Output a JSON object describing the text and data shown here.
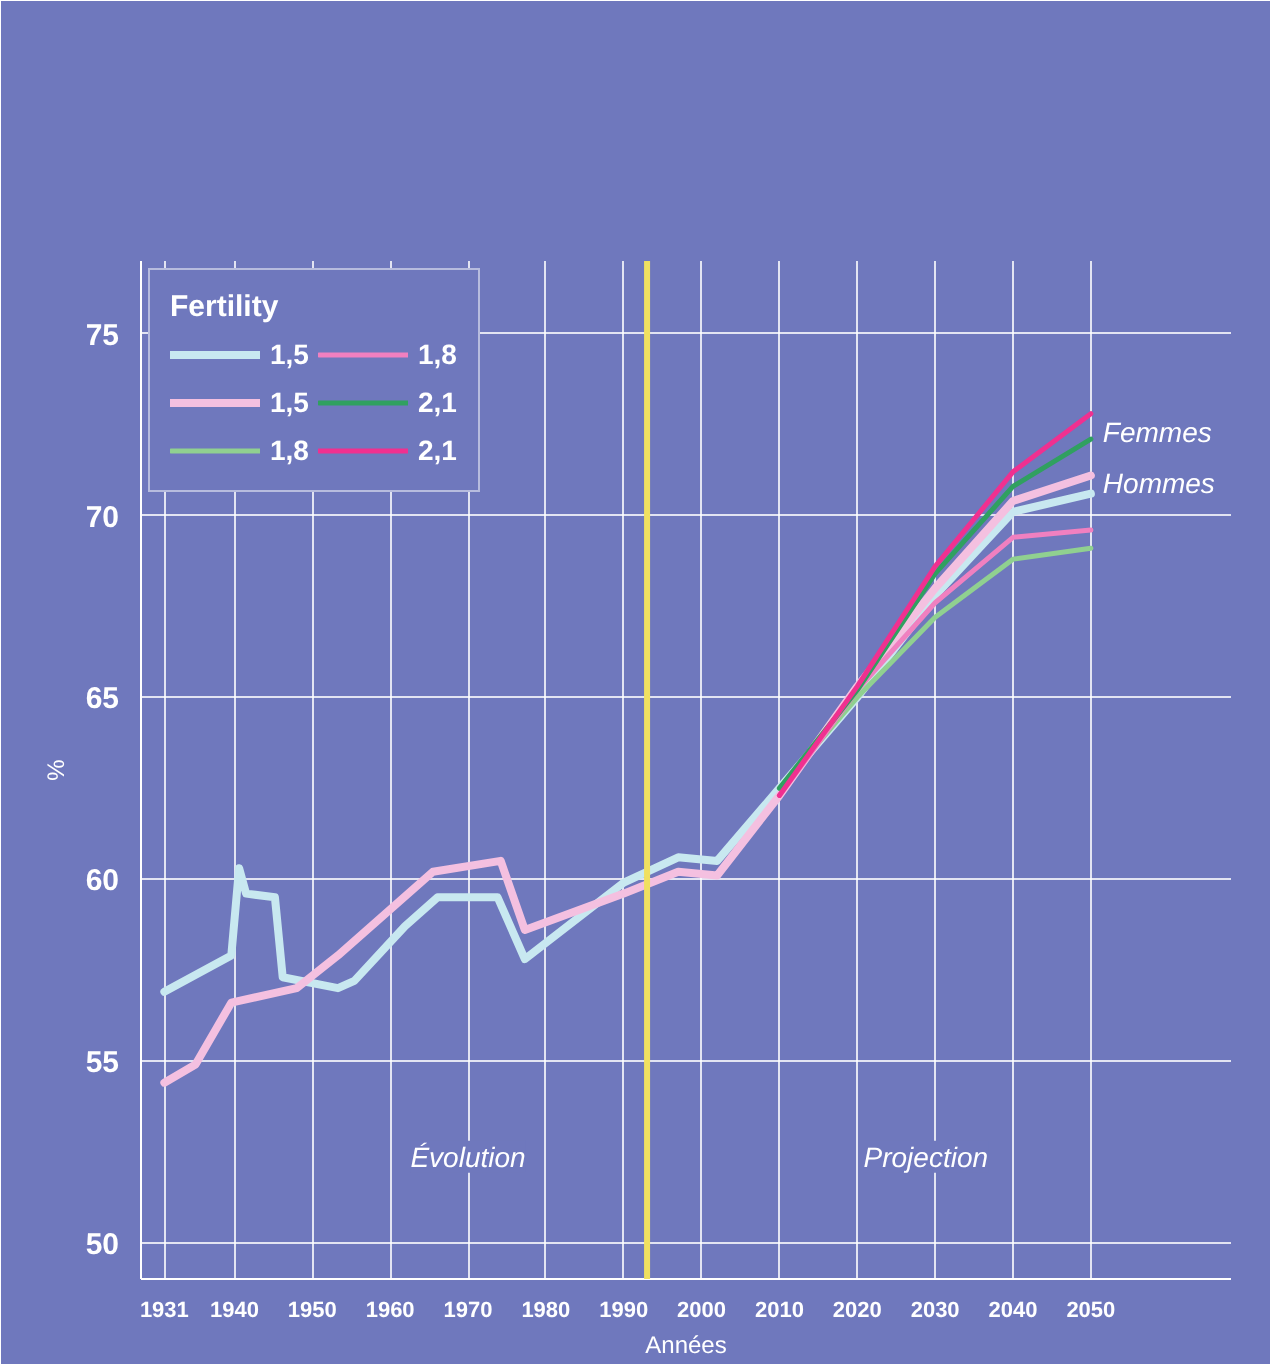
{
  "chart_data": {
    "type": "line",
    "ylabel": "%",
    "xlabel": "Années",
    "legend_title": "Fertility",
    "legend": "top left",
    "grid": true,
    "xlim": [
      1928,
      2068
    ],
    "ylim": [
      49,
      77
    ],
    "xticks": [
      1931,
      1940,
      1950,
      1960,
      1970,
      1980,
      1990,
      2000,
      2010,
      2020,
      2030,
      2040,
      2050
    ],
    "yticks": [
      50,
      55,
      60,
      65,
      70,
      75
    ],
    "series": [
      {
        "name": "1,5",
        "color": "#c8e8f0",
        "x": [
          1931,
          1939.6,
          1940.6,
          1941.5,
          1945.2,
          1946.2,
          1953.3,
          1955.4,
          1961.9,
          1966.1,
          1973.8,
          1977.3,
          1990,
          1997,
          2002,
          2010,
          2020,
          2030,
          2040,
          2050
        ],
        "values": [
          56.9,
          57.9,
          60.3,
          59.6,
          59.5,
          57.3,
          57.0,
          57.2,
          58.7,
          59.5,
          59.5,
          57.8,
          59.9,
          60.6,
          60.5,
          62.5,
          65.0,
          67.8,
          70.1,
          70.6
        ]
      },
      {
        "name": "1,5",
        "color": "#f4c0e0",
        "x": [
          1931,
          1935,
          1939.6,
          1948,
          1953.3,
          1965.5,
          1974.2,
          1977.3,
          1990,
          1997,
          2002,
          2010,
          2020,
          2030,
          2040,
          2050
        ],
        "values": [
          54.4,
          54.9,
          56.6,
          57.0,
          57.9,
          60.2,
          60.5,
          58.6,
          59.6,
          60.2,
          60.1,
          62.3,
          65.3,
          68.0,
          70.4,
          71.1
        ]
      },
      {
        "name": "1,8",
        "color": "#90d090",
        "x": [
          2010,
          2020,
          2030,
          2040,
          2050
        ],
        "values": [
          62.5,
          65.0,
          67.2,
          68.8,
          69.1
        ]
      },
      {
        "name": "1,8",
        "color": "#f080c0",
        "x": [
          2010,
          2020,
          2030,
          2040,
          2050
        ],
        "values": [
          62.3,
          65.2,
          67.6,
          69.4,
          69.6
        ]
      },
      {
        "name": "2,1",
        "color": "#30a060",
        "x": [
          2010,
          2020,
          2030,
          2040,
          2050
        ],
        "values": [
          62.5,
          65.2,
          68.4,
          70.8,
          72.1
        ]
      },
      {
        "name": "2,1",
        "color": "#f03090",
        "x": [
          2010,
          2020,
          2030,
          2040,
          2050
        ],
        "values": [
          62.3,
          65.3,
          68.6,
          71.2,
          72.8
        ]
      }
    ],
    "ref_lines": [
      {
        "axis": "x",
        "value": 1993,
        "color": "#f0e060"
      }
    ],
    "annotations": [
      {
        "text": "Femmes",
        "x": 2050,
        "y": 72.3
      },
      {
        "text": "Hommes",
        "x": 2050,
        "y": 70.9
      },
      "Évolution",
      "Projection"
    ]
  }
}
